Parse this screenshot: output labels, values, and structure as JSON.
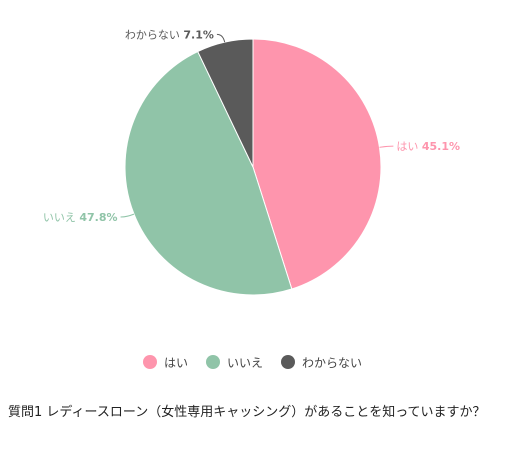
{
  "chart_data": {
    "type": "pie",
    "slices": [
      {
        "label": "はい",
        "value": 45.1,
        "value_text": "45.1%",
        "color": "#fe95ad"
      },
      {
        "label": "いいえ",
        "value": 47.8,
        "value_text": "47.8%",
        "color": "#90c4a8"
      },
      {
        "label": "わからない",
        "value": 7.1,
        "value_text": "7.1%",
        "color": "#5a5a5a"
      }
    ],
    "start": "top",
    "direction": "clockwise",
    "legend_position": "bottom"
  },
  "caption": "質問1 レディースローン（女性専用キャッシング）があることを知っていますか？"
}
